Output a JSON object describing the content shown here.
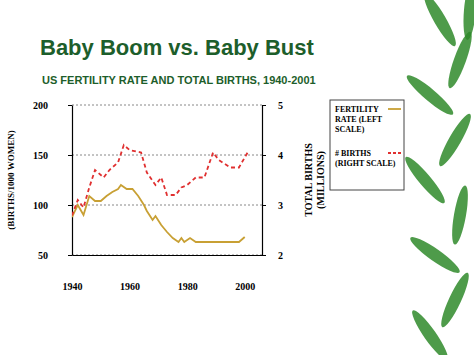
{
  "chart_data": {
    "type": "line",
    "title": "Baby Boom vs. Baby Bust",
    "subtitle": "US FERTILITY RATE AND TOTAL BIRTHS, 1940-2001",
    "y_label": "(BIRTHS/1000 WOMEN)",
    "y2_label": "TOTAL BIRTHS (MILLIONS)",
    "xlim": [
      1940,
      2006
    ],
    "xticks": [
      1940,
      1960,
      1980,
      2000
    ],
    "ylim": [
      50,
      200
    ],
    "yticks": [
      50,
      100,
      150,
      200
    ],
    "y2lim": [
      2,
      5
    ],
    "y2ticks": [
      2,
      3,
      4,
      5
    ],
    "grid": true,
    "legend": "right",
    "series": [
      {
        "name": "FERTILITY RATE (LEFT SCALE)",
        "color": "#c8a034",
        "line_style": "solid",
        "x": [
          1940,
          1942,
          1944,
          1946,
          1948,
          1950,
          1952,
          1954,
          1956,
          1957,
          1959,
          1961,
          1963,
          1965,
          1966,
          1968,
          1969,
          1971,
          1973,
          1975,
          1977,
          1978,
          1979,
          1981,
          1983,
          1990,
          1995,
          1998,
          2000
        ],
        "values": [
          88,
          100,
          90,
          109,
          104,
          104,
          109,
          113,
          116,
          120,
          116,
          116,
          109,
          100,
          94,
          85,
          89,
          80,
          73,
          67,
          63,
          67,
          63,
          67,
          63,
          63,
          63,
          63,
          68
        ]
      },
      {
        "name": "# BIRTHS (RIGHT SCALE)",
        "color": "#e03030",
        "line_style": "dashed",
        "axis": "y2",
        "x": [
          1940,
          1942,
          1944,
          1946,
          1948,
          1951,
          1953,
          1956,
          1958,
          1960,
          1964,
          1966,
          1969,
          1971,
          1973,
          1976,
          1978,
          1980,
          1983,
          1986,
          1989,
          1991,
          1995,
          1998,
          2001
        ],
        "values": [
          2.79,
          3.1,
          2.95,
          3.35,
          3.7,
          3.55,
          3.7,
          3.85,
          4.2,
          4.1,
          4.05,
          3.65,
          3.4,
          3.55,
          3.2,
          3.2,
          3.35,
          3.4,
          3.55,
          3.55,
          4.05,
          3.9,
          3.75,
          3.75,
          4.05
        ]
      }
    ]
  }
}
